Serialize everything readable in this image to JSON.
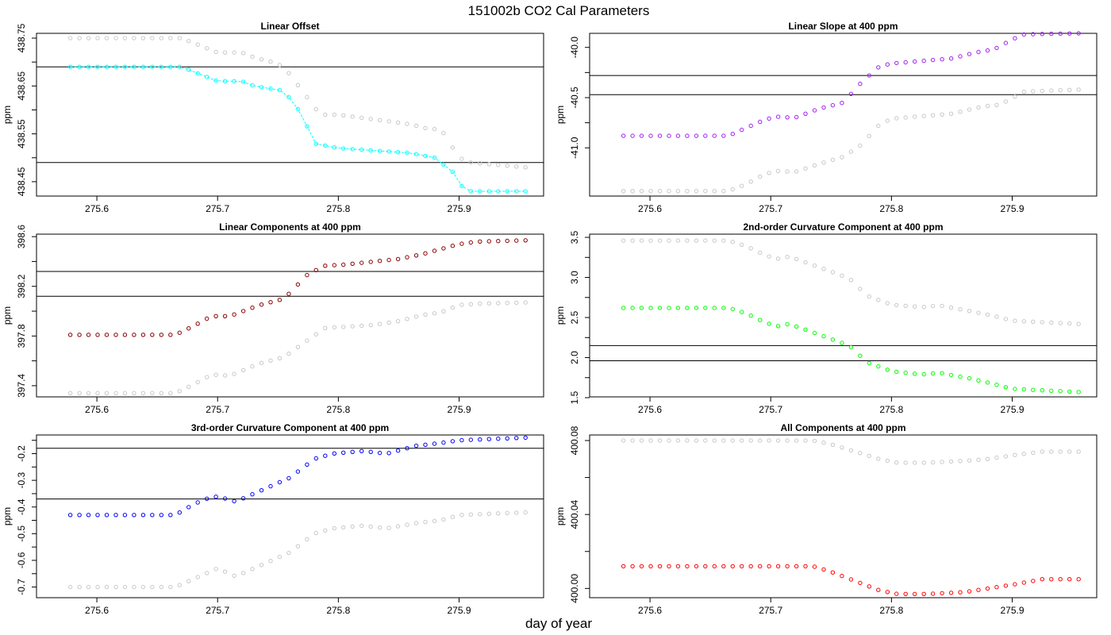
{
  "figure": {
    "title": "151002b   CO2 Cal Parameters",
    "xlabel": "day of year"
  },
  "colors": {
    "background": "#ffffff",
    "axis": "#000000",
    "reference_series": "#c8c8c8"
  },
  "chart_data": [
    {
      "type": "scatter",
      "title": "Linear Offset",
      "ylabel": "ppm",
      "xlim": [
        275.55,
        275.97
      ],
      "ylim": [
        438.42,
        438.76
      ],
      "xticks": [
        "275.6",
        "275.7",
        "275.8",
        "275.9"
      ],
      "yticks": [
        "438.45",
        "438.55",
        "438.65",
        "438.75"
      ],
      "hlines": [
        438.69,
        438.49
      ],
      "connect_main": true,
      "series": [
        {
          "name": "reference",
          "color": "#c8c8c8",
          "points": [
            [
              275.578,
              438.75
            ],
            [
              275.67,
              438.75
            ],
            [
              275.68,
              438.74
            ],
            [
              275.69,
              438.73
            ],
            [
              275.7,
              438.72
            ],
            [
              275.72,
              438.72
            ],
            [
              275.73,
              438.71
            ],
            [
              275.745,
              438.7
            ],
            [
              275.755,
              438.69
            ],
            [
              275.77,
              438.64
            ],
            [
              275.785,
              438.59
            ],
            [
              275.8,
              438.59
            ],
            [
              275.86,
              438.57
            ],
            [
              275.875,
              438.56
            ],
            [
              275.885,
              438.56
            ],
            [
              275.9,
              438.5
            ],
            [
              275.91,
              438.49
            ],
            [
              275.955,
              438.48
            ]
          ]
        },
        {
          "name": "main",
          "color": "#00ffff",
          "points": [
            [
              275.578,
              438.69
            ],
            [
              275.67,
              438.69
            ],
            [
              275.69,
              438.67
            ],
            [
              275.7,
              438.66
            ],
            [
              275.72,
              438.66
            ],
            [
              275.73,
              438.65
            ],
            [
              275.755,
              438.64
            ],
            [
              275.77,
              438.59
            ],
            [
              275.78,
              438.53
            ],
            [
              275.8,
              438.52
            ],
            [
              275.86,
              438.51
            ],
            [
              275.88,
              438.5
            ],
            [
              275.895,
              438.47
            ],
            [
              275.905,
              438.43
            ],
            [
              275.955,
              438.43
            ]
          ]
        }
      ]
    },
    {
      "type": "scatter",
      "title": "Linear Slope at 400 ppm",
      "ylabel": "ppm",
      "xlim": [
        275.55,
        275.97
      ],
      "ylim": [
        -41.48,
        -39.86
      ],
      "xticks": [
        "275.6",
        "275.7",
        "275.8",
        "275.9"
      ],
      "yticks": [
        "-41.0",
        "-40.5",
        "-40.0"
      ],
      "hlines": [
        -40.28,
        -40.47
      ],
      "connect_main": false,
      "series": [
        {
          "name": "reference",
          "color": "#c8c8c8",
          "points": [
            [
              275.578,
              -41.43
            ],
            [
              275.665,
              -41.43
            ],
            [
              275.68,
              -41.36
            ],
            [
              275.695,
              -41.26
            ],
            [
              275.705,
              -41.23
            ],
            [
              275.72,
              -41.24
            ],
            [
              275.74,
              -41.16
            ],
            [
              275.76,
              -41.09
            ],
            [
              275.775,
              -40.97
            ],
            [
              275.79,
              -40.77
            ],
            [
              275.8,
              -40.71
            ],
            [
              275.82,
              -40.69
            ],
            [
              275.85,
              -40.66
            ],
            [
              275.875,
              -40.59
            ],
            [
              275.89,
              -40.57
            ],
            [
              275.91,
              -40.44
            ],
            [
              275.955,
              -40.42
            ]
          ]
        },
        {
          "name": "main",
          "color": "#a020f0",
          "points": [
            [
              275.578,
              -40.88
            ],
            [
              275.665,
              -40.88
            ],
            [
              275.68,
              -40.8
            ],
            [
              275.695,
              -40.72
            ],
            [
              275.705,
              -40.69
            ],
            [
              275.72,
              -40.7
            ],
            [
              275.74,
              -40.61
            ],
            [
              275.76,
              -40.55
            ],
            [
              275.775,
              -40.35
            ],
            [
              275.79,
              -40.19
            ],
            [
              275.8,
              -40.16
            ],
            [
              275.82,
              -40.14
            ],
            [
              275.85,
              -40.11
            ],
            [
              275.87,
              -40.05
            ],
            [
              275.885,
              -40.02
            ],
            [
              275.9,
              -39.92
            ],
            [
              275.91,
              -39.87
            ],
            [
              275.955,
              -39.86
            ]
          ]
        }
      ]
    },
    {
      "type": "scatter",
      "title": "Linear Components at 400 ppm",
      "ylabel": "ppm",
      "xlim": [
        275.55,
        275.97
      ],
      "ylim": [
        397.31,
        398.62
      ],
      "xticks": [
        "275.6",
        "275.7",
        "275.8",
        "275.9"
      ],
      "yticks": [
        "397.4",
        "397.8",
        "398.2",
        "398.6"
      ],
      "hlines": [
        398.32,
        398.12
      ],
      "connect_main": false,
      "series": [
        {
          "name": "reference",
          "color": "#c8c8c8",
          "points": [
            [
              275.578,
              397.34
            ],
            [
              275.665,
              397.34
            ],
            [
              275.68,
              397.41
            ],
            [
              275.695,
              397.49
            ],
            [
              275.71,
              397.48
            ],
            [
              275.735,
              397.58
            ],
            [
              275.755,
              397.63
            ],
            [
              275.775,
              397.77
            ],
            [
              275.79,
              397.87
            ],
            [
              275.8,
              397.87
            ],
            [
              275.83,
              397.89
            ],
            [
              275.85,
              397.92
            ],
            [
              275.87,
              397.97
            ],
            [
              275.885,
              397.99
            ],
            [
              275.9,
              398.05
            ],
            [
              275.915,
              398.06
            ],
            [
              275.955,
              398.07
            ]
          ]
        },
        {
          "name": "main",
          "color": "#8b0000",
          "points": [
            [
              275.578,
              397.81
            ],
            [
              275.665,
              397.81
            ],
            [
              275.68,
              397.88
            ],
            [
              275.695,
              397.96
            ],
            [
              275.71,
              397.96
            ],
            [
              275.735,
              398.05
            ],
            [
              275.755,
              398.1
            ],
            [
              275.775,
              398.3
            ],
            [
              275.79,
              398.37
            ],
            [
              275.8,
              398.37
            ],
            [
              275.83,
              398.4
            ],
            [
              275.85,
              398.42
            ],
            [
              275.87,
              398.46
            ],
            [
              275.885,
              398.5
            ],
            [
              275.9,
              398.54
            ],
            [
              275.915,
              398.56
            ],
            [
              275.955,
              398.57
            ]
          ]
        }
      ]
    },
    {
      "type": "scatter",
      "title": "2nd-order Curvature Component at 400 ppm",
      "ylabel": "ppm",
      "xlim": [
        275.55,
        275.97
      ],
      "ylim": [
        1.51,
        3.54
      ],
      "xticks": [
        "275.6",
        "275.7",
        "275.8",
        "275.9"
      ],
      "yticks": [
        "1.5",
        "2.0",
        "2.5",
        "3.0",
        "3.5"
      ],
      "hlines": [
        2.15,
        1.96
      ],
      "connect_main": false,
      "series": [
        {
          "name": "reference",
          "color": "#c8c8c8",
          "points": [
            [
              275.578,
              3.46
            ],
            [
              275.665,
              3.46
            ],
            [
              275.68,
              3.39
            ],
            [
              275.695,
              3.28
            ],
            [
              275.705,
              3.23
            ],
            [
              275.715,
              3.26
            ],
            [
              275.725,
              3.21
            ],
            [
              275.745,
              3.1
            ],
            [
              275.765,
              2.99
            ],
            [
              275.78,
              2.77
            ],
            [
              275.8,
              2.66
            ],
            [
              275.825,
              2.63
            ],
            [
              275.84,
              2.65
            ],
            [
              275.865,
              2.58
            ],
            [
              275.885,
              2.52
            ],
            [
              275.9,
              2.46
            ],
            [
              275.955,
              2.42
            ]
          ]
        },
        {
          "name": "main",
          "color": "#00ff00",
          "points": [
            [
              275.578,
              2.62
            ],
            [
              275.665,
              2.62
            ],
            [
              275.68,
              2.55
            ],
            [
              275.695,
              2.44
            ],
            [
              275.705,
              2.39
            ],
            [
              275.715,
              2.42
            ],
            [
              275.725,
              2.37
            ],
            [
              275.745,
              2.26
            ],
            [
              275.765,
              2.15
            ],
            [
              275.78,
              1.94
            ],
            [
              275.8,
              1.83
            ],
            [
              275.825,
              1.79
            ],
            [
              275.84,
              1.81
            ],
            [
              275.865,
              1.74
            ],
            [
              275.885,
              1.67
            ],
            [
              275.9,
              1.61
            ],
            [
              275.955,
              1.57
            ]
          ]
        }
      ]
    },
    {
      "type": "scatter",
      "title": "3rd-order Curvature Component at 400 ppm",
      "ylabel": "ppm",
      "xlim": [
        275.55,
        275.97
      ],
      "ylim": [
        -0.74,
        -0.13
      ],
      "xticks": [
        "275.6",
        "275.7",
        "275.8",
        "275.9"
      ],
      "yticks": [
        "-0.7",
        "-0.6",
        "-0.5",
        "-0.4",
        "-0.3",
        "-0.2"
      ],
      "hlines": [
        -0.18,
        -0.37
      ],
      "connect_main": false,
      "series": [
        {
          "name": "reference",
          "color": "#c8c8c8",
          "points": [
            [
              275.578,
              -0.7
            ],
            [
              275.665,
              -0.7
            ],
            [
              275.68,
              -0.67
            ],
            [
              275.69,
              -0.65
            ],
            [
              275.7,
              -0.63
            ],
            [
              275.715,
              -0.66
            ],
            [
              275.735,
              -0.62
            ],
            [
              275.76,
              -0.57
            ],
            [
              275.78,
              -0.5
            ],
            [
              275.795,
              -0.48
            ],
            [
              275.82,
              -0.47
            ],
            [
              275.84,
              -0.48
            ],
            [
              275.865,
              -0.46
            ],
            [
              275.885,
              -0.45
            ],
            [
              275.9,
              -0.43
            ],
            [
              275.955,
              -0.42
            ]
          ]
        },
        {
          "name": "main",
          "color": "#0000ff",
          "points": [
            [
              275.578,
              -0.43
            ],
            [
              275.665,
              -0.43
            ],
            [
              275.68,
              -0.39
            ],
            [
              275.69,
              -0.37
            ],
            [
              275.7,
              -0.36
            ],
            [
              275.715,
              -0.38
            ],
            [
              275.735,
              -0.34
            ],
            [
              275.76,
              -0.29
            ],
            [
              275.78,
              -0.22
            ],
            [
              275.795,
              -0.2
            ],
            [
              275.82,
              -0.19
            ],
            [
              275.84,
              -0.2
            ],
            [
              275.865,
              -0.17
            ],
            [
              275.885,
              -0.16
            ],
            [
              275.9,
              -0.15
            ],
            [
              275.955,
              -0.14
            ]
          ]
        }
      ]
    },
    {
      "type": "scatter",
      "title": "All Components at 400 ppm",
      "ylabel": "ppm",
      "xlim": [
        275.55,
        275.97
      ],
      "ylim": [
        399.995,
        400.083
      ],
      "xticks": [
        "275.6",
        "275.7",
        "275.8",
        "275.9"
      ],
      "yticks": [
        "400.00",
        "400.04",
        "400.08"
      ],
      "hlines": [],
      "connect_main": false,
      "series": [
        {
          "name": "reference",
          "color": "#c8c8c8",
          "points": [
            [
              275.578,
              400.08
            ],
            [
              275.735,
              400.08
            ],
            [
              275.75,
              400.078
            ],
            [
              275.77,
              400.074
            ],
            [
              275.79,
              400.07
            ],
            [
              275.805,
              400.068
            ],
            [
              275.83,
              400.068
            ],
            [
              275.86,
              400.069
            ],
            [
              275.88,
              400.07
            ],
            [
              275.9,
              400.072
            ],
            [
              275.925,
              400.074
            ],
            [
              275.955,
              400.074
            ]
          ]
        },
        {
          "name": "main",
          "color": "#ff0000",
          "points": [
            [
              275.578,
              400.012
            ],
            [
              275.735,
              400.012
            ],
            [
              275.75,
              400.009
            ],
            [
              275.77,
              400.004
            ],
            [
              275.79,
              399.999
            ],
            [
              275.805,
              399.997
            ],
            [
              275.83,
              399.997
            ],
            [
              275.86,
              399.998
            ],
            [
              275.88,
              400.0
            ],
            [
              275.9,
              400.002
            ],
            [
              275.925,
              400.005
            ],
            [
              275.955,
              400.005
            ]
          ]
        }
      ]
    }
  ]
}
